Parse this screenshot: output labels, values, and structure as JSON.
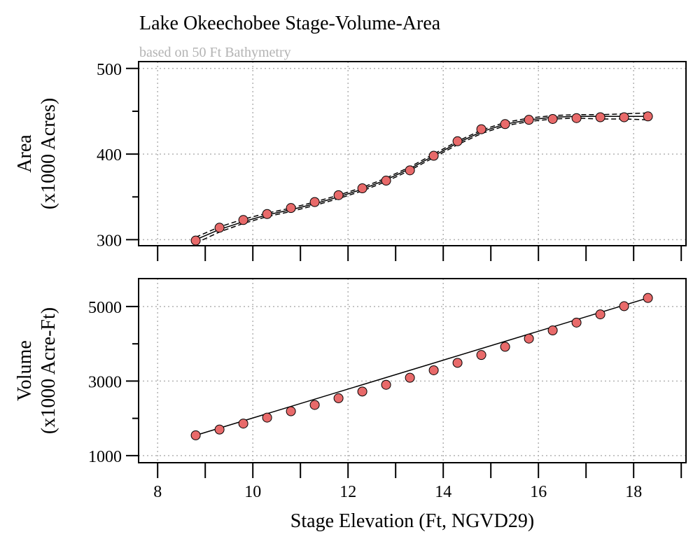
{
  "title": "Lake Okeechobee Stage-Volume-Area",
  "subtitle": "based on 50 Ft Bathymetry",
  "colors": {
    "point_fill": "#e86a6a",
    "subtitle": "#b3b3b3"
  },
  "chart_data": [
    {
      "type": "scatter",
      "ylabel_lines": [
        "Area",
        "(x1000 Acres)"
      ],
      "xlim": [
        7.6,
        19.1
      ],
      "ylim": [
        293,
        508
      ],
      "xticks": [
        8,
        10,
        12,
        14,
        16,
        18
      ],
      "yticks": [
        300,
        400,
        500
      ],
      "yticks_minor": [
        350,
        450
      ],
      "grid": true,
      "series": [
        {
          "x": [
            8.8,
            9.3,
            9.8,
            10.3,
            10.8,
            11.3,
            11.8,
            12.3,
            12.8,
            13.3,
            13.8,
            14.3,
            14.8,
            15.3,
            15.8,
            16.3,
            16.8,
            17.3,
            17.8,
            18.3
          ],
          "y": [
            299,
            314,
            323,
            330,
            337,
            344,
            352,
            360,
            369,
            381,
            398,
            415,
            429,
            435,
            440,
            441,
            442,
            443,
            443,
            444
          ]
        }
      ],
      "fit": {
        "x": [
          8.8,
          9.3,
          9.8,
          10.3,
          10.8,
          11.3,
          11.8,
          12.3,
          12.8,
          13.3,
          13.8,
          14.3,
          14.8,
          15.3,
          15.8,
          16.3,
          16.8,
          17.3,
          17.8,
          18.3
        ],
        "y": [
          300,
          312,
          321,
          329,
          335,
          342,
          350,
          359,
          370,
          383,
          398,
          413,
          426,
          435,
          440,
          443,
          444,
          444,
          444,
          444
        ],
        "upper": [
          303,
          315,
          324,
          331,
          337,
          344,
          352,
          361,
          372,
          385,
          400,
          415,
          428,
          437,
          442,
          445,
          446,
          446,
          447,
          448
        ],
        "lower": [
          296,
          309,
          319,
          327,
          333,
          340,
          348,
          357,
          368,
          381,
          396,
          411,
          424,
          433,
          438,
          441,
          442,
          441,
          441,
          440
        ]
      }
    },
    {
      "type": "scatter",
      "ylabel_lines": [
        "Volume",
        "(x1000 Acre-Ft)"
      ],
      "xlabel": "Stage Elevation (Ft, NGVD29)",
      "xlim": [
        7.6,
        19.1
      ],
      "ylim": [
        810,
        5750
      ],
      "xticks": [
        8,
        10,
        12,
        14,
        16,
        18
      ],
      "yticks": [
        1000,
        3000,
        5000
      ],
      "yticks_minor": [
        2000,
        4000
      ],
      "grid": true,
      "series": [
        {
          "x": [
            8.8,
            9.3,
            9.8,
            10.3,
            10.8,
            11.3,
            11.8,
            12.3,
            12.8,
            13.3,
            13.8,
            14.3,
            14.8,
            15.3,
            15.8,
            16.3,
            16.8,
            17.3,
            17.8,
            18.3
          ],
          "y": [
            1545,
            1700,
            1860,
            2020,
            2190,
            2360,
            2540,
            2720,
            2900,
            3090,
            3290,
            3490,
            3700,
            3920,
            4140,
            4360,
            4570,
            4790,
            5010,
            5230
          ]
        }
      ],
      "fit": {
        "x": [
          8.8,
          18.3
        ],
        "y": [
          1545,
          5230
        ]
      }
    }
  ]
}
